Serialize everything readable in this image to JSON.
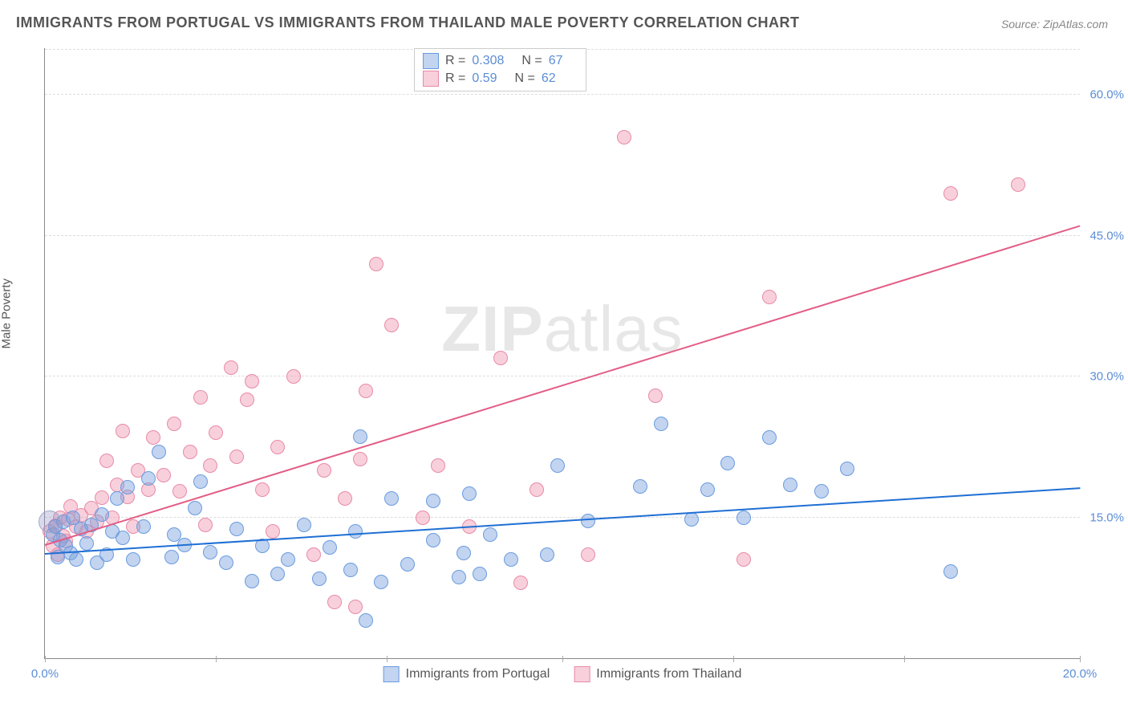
{
  "title": "IMMIGRANTS FROM PORTUGAL VS IMMIGRANTS FROM THAILAND MALE POVERTY CORRELATION CHART",
  "source": "Source: ZipAtlas.com",
  "ylabel": "Male Poverty",
  "watermark_a": "ZIP",
  "watermark_b": "atlas",
  "chart": {
    "type": "scatter-with-regression",
    "xlim": [
      0,
      20
    ],
    "ylim": [
      0,
      65
    ],
    "xticks": [
      0,
      3.3,
      6.6,
      10,
      13.3,
      16.6,
      20
    ],
    "xtick_labels": {
      "0": "0.0%",
      "20": "20.0%"
    },
    "yticks": [
      15,
      30,
      45,
      60
    ],
    "ytick_labels": {
      "15": "15.0%",
      "30": "30.0%",
      "45": "45.0%",
      "60": "60.0%"
    },
    "grid_color": "#dddddd",
    "series": [
      {
        "name": "Immigrants from Portugal",
        "color_fill": "rgba(120,160,220,0.45)",
        "color_stroke": "#6a9be0",
        "line_color": "#1f6fd4",
        "r": 0.308,
        "n": 67,
        "marker_r": 8,
        "trend": {
          "x1": 0,
          "y1": 11.0,
          "x2": 20,
          "y2": 18.0
        },
        "points": [
          [
            0.15,
            13.2
          ],
          [
            0.2,
            14.0
          ],
          [
            0.25,
            10.8
          ],
          [
            0.3,
            12.6
          ],
          [
            0.35,
            14.5
          ],
          [
            0.4,
            12.0
          ],
          [
            0.5,
            11.2
          ],
          [
            0.55,
            15.0
          ],
          [
            0.6,
            10.5
          ],
          [
            0.7,
            13.8
          ],
          [
            0.8,
            12.2
          ],
          [
            0.9,
            14.2
          ],
          [
            1.0,
            10.2
          ],
          [
            1.1,
            15.3
          ],
          [
            1.2,
            11.0
          ],
          [
            1.3,
            13.5
          ],
          [
            1.4,
            17.0
          ],
          [
            1.5,
            12.8
          ],
          [
            1.6,
            18.2
          ],
          [
            1.7,
            10.5
          ],
          [
            1.9,
            14.0
          ],
          [
            2.0,
            19.2
          ],
          [
            2.2,
            22.0
          ],
          [
            2.45,
            10.8
          ],
          [
            2.5,
            13.2
          ],
          [
            2.7,
            12.1
          ],
          [
            2.9,
            16.0
          ],
          [
            3.0,
            18.8
          ],
          [
            3.2,
            11.3
          ],
          [
            3.5,
            10.2
          ],
          [
            3.7,
            13.8
          ],
          [
            4.0,
            8.2
          ],
          [
            4.2,
            12.0
          ],
          [
            4.5,
            9.0
          ],
          [
            4.7,
            10.5
          ],
          [
            5.0,
            14.2
          ],
          [
            5.3,
            8.5
          ],
          [
            5.5,
            11.8
          ],
          [
            5.9,
            9.4
          ],
          [
            6.0,
            13.5
          ],
          [
            6.1,
            23.6
          ],
          [
            6.2,
            4.0
          ],
          [
            6.5,
            8.1
          ],
          [
            6.7,
            17.0
          ],
          [
            7.0,
            10.0
          ],
          [
            7.5,
            12.6
          ],
          [
            7.5,
            16.8
          ],
          [
            8.0,
            8.6
          ],
          [
            8.1,
            11.2
          ],
          [
            8.2,
            17.5
          ],
          [
            8.4,
            9.0
          ],
          [
            8.6,
            13.2
          ],
          [
            9.0,
            10.5
          ],
          [
            9.7,
            11.0
          ],
          [
            9.9,
            20.5
          ],
          [
            10.5,
            14.6
          ],
          [
            11.5,
            18.3
          ],
          [
            11.9,
            25.0
          ],
          [
            12.5,
            14.8
          ],
          [
            12.8,
            18.0
          ],
          [
            13.2,
            20.8
          ],
          [
            13.5,
            15.0
          ],
          [
            14.0,
            23.5
          ],
          [
            14.4,
            18.5
          ],
          [
            15.0,
            17.8
          ],
          [
            15.5,
            20.2
          ],
          [
            17.5,
            9.2
          ]
        ]
      },
      {
        "name": "Immigrants from Thailand",
        "color_fill": "rgba(240,150,175,0.45)",
        "color_stroke": "#e88aa8",
        "line_color": "#e35d86",
        "r": 0.59,
        "n": 62,
        "marker_r": 8,
        "trend": {
          "x1": 0,
          "y1": 12.0,
          "x2": 20,
          "y2": 46.0
        },
        "points": [
          [
            0.1,
            13.5
          ],
          [
            0.15,
            12.0
          ],
          [
            0.2,
            14.1
          ],
          [
            0.25,
            11.0
          ],
          [
            0.3,
            15.0
          ],
          [
            0.35,
            13.0
          ],
          [
            0.4,
            12.5
          ],
          [
            0.45,
            14.8
          ],
          [
            0.5,
            16.2
          ],
          [
            0.6,
            14.0
          ],
          [
            0.7,
            15.2
          ],
          [
            0.8,
            13.5
          ],
          [
            0.9,
            16.0
          ],
          [
            1.0,
            14.5
          ],
          [
            1.1,
            17.1
          ],
          [
            1.2,
            21.0
          ],
          [
            1.3,
            15.0
          ],
          [
            1.4,
            18.5
          ],
          [
            1.5,
            24.2
          ],
          [
            1.6,
            17.2
          ],
          [
            1.7,
            14.0
          ],
          [
            1.8,
            20.0
          ],
          [
            2.0,
            18.0
          ],
          [
            2.1,
            23.5
          ],
          [
            2.3,
            19.5
          ],
          [
            2.5,
            25.0
          ],
          [
            2.6,
            17.8
          ],
          [
            2.8,
            22.0
          ],
          [
            3.0,
            27.8
          ],
          [
            3.1,
            14.2
          ],
          [
            3.2,
            20.5
          ],
          [
            3.3,
            24.0
          ],
          [
            3.6,
            31.0
          ],
          [
            3.7,
            21.5
          ],
          [
            3.9,
            27.5
          ],
          [
            4.0,
            29.5
          ],
          [
            4.2,
            18.0
          ],
          [
            4.4,
            13.5
          ],
          [
            4.5,
            22.5
          ],
          [
            4.8,
            30.0
          ],
          [
            5.2,
            11.0
          ],
          [
            5.4,
            20.0
          ],
          [
            5.6,
            6.0
          ],
          [
            5.8,
            17.0
          ],
          [
            6.0,
            5.5
          ],
          [
            6.1,
            21.2
          ],
          [
            6.2,
            28.5
          ],
          [
            6.4,
            42.0
          ],
          [
            6.7,
            35.5
          ],
          [
            7.3,
            15.0
          ],
          [
            7.6,
            20.5
          ],
          [
            8.2,
            14.0
          ],
          [
            8.8,
            32.0
          ],
          [
            9.2,
            8.0
          ],
          [
            9.5,
            18.0
          ],
          [
            10.5,
            11.0
          ],
          [
            11.2,
            55.5
          ],
          [
            11.8,
            28.0
          ],
          [
            14.0,
            38.5
          ],
          [
            13.5,
            10.5
          ],
          [
            17.5,
            49.5
          ],
          [
            18.8,
            50.5
          ]
        ]
      }
    ]
  }
}
